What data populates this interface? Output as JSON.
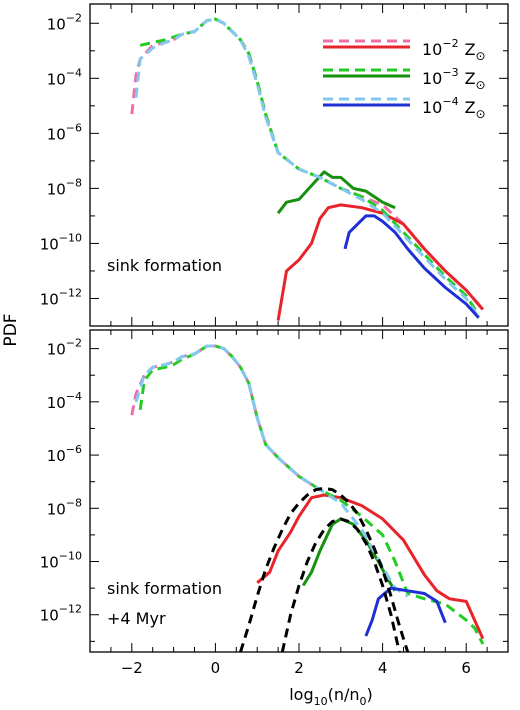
{
  "figure": {
    "ylabel": "PDF",
    "xlabel_base": "log",
    "xlabel_sub": "10",
    "xlabel_rest": "(n/n",
    "xlabel_sub2": "0",
    "xlabel_close": ")"
  },
  "legend": {
    "entries": [
      {
        "base": "10",
        "exp": "−2",
        "unit": "Z",
        "sun": "⊙",
        "dash_color": "#ee6fa8",
        "solid_color": "#e8232a"
      },
      {
        "base": "10",
        "exp": "−3",
        "unit": "Z",
        "sun": "⊙",
        "dash_color": "#22cc22",
        "solid_color": "#17900f"
      },
      {
        "base": "10",
        "exp": "−4",
        "unit": "Z",
        "sun": "⊙",
        "dash_color": "#82c8f0",
        "solid_color": "#1e2fd6"
      }
    ]
  },
  "chart_data": [
    {
      "type": "line",
      "panel": "top",
      "annotation": [
        "sink formation"
      ],
      "xlim": [
        -3,
        7
      ],
      "ylim_log10": [
        -13,
        -1.3
      ],
      "y_scale": "log",
      "x_ticks": [
        -2,
        0,
        2,
        4,
        6
      ],
      "x_tick_labels": [
        "",
        "",
        "",
        "",
        ""
      ],
      "y_ticks_log10": [
        -12,
        -10,
        -8,
        -6,
        -4,
        -2
      ],
      "y_tick_labels": [
        [
          "10",
          "−12"
        ],
        [
          "10",
          "−10"
        ],
        [
          "10",
          "−8"
        ],
        [
          "10",
          "−6"
        ],
        [
          "10",
          "−4"
        ],
        [
          "10",
          "−2"
        ]
      ],
      "series": [
        {
          "color": "#ee6fa8",
          "style": "dashed",
          "x": [
            -2.0,
            -1.9,
            -1.8,
            -1.5,
            -1.2,
            -1.0,
            -0.8,
            -0.5,
            -0.2,
            0.0,
            0.2,
            0.4,
            0.6,
            0.8,
            1.0,
            1.2,
            1.5,
            2.0,
            2.5,
            3.0,
            3.5,
            4.0,
            4.5,
            5.0,
            5.5,
            6.0,
            6.4
          ],
          "y": [
            -5.3,
            -3.9,
            -3.3,
            -2.8,
            -2.7,
            -2.6,
            -2.4,
            -2.3,
            -1.9,
            -1.85,
            -2.0,
            -2.3,
            -2.6,
            -3.1,
            -4.1,
            -5.3,
            -6.7,
            -7.3,
            -7.6,
            -8.0,
            -8.3,
            -8.6,
            -9.3,
            -10.2,
            -11.0,
            -11.7,
            -12.4
          ]
        },
        {
          "color": "#e8232a",
          "style": "solid",
          "x": [
            1.5,
            1.7,
            2.0,
            2.3,
            2.5,
            2.7,
            3.0,
            3.5,
            4.0,
            4.5,
            5.0,
            5.5,
            6.0,
            6.4
          ],
          "y": [
            -12.8,
            -11.0,
            -10.6,
            -10.0,
            -9.1,
            -8.7,
            -8.6,
            -8.7,
            -8.9,
            -9.3,
            -10.2,
            -11.0,
            -11.7,
            -12.4
          ]
        },
        {
          "color": "#22cc22",
          "style": "dashed",
          "x": [
            -1.8,
            -1.5,
            -1.2,
            -1.0,
            -0.8,
            -0.5,
            -0.2,
            0.0,
            0.2,
            0.4,
            0.6,
            0.8,
            1.0,
            1.2,
            1.5,
            2.0,
            2.5,
            3.0,
            3.5,
            4.0,
            4.5,
            5.0,
            5.5,
            6.0,
            6.3
          ],
          "y": [
            -2.8,
            -2.7,
            -2.6,
            -2.5,
            -2.4,
            -2.3,
            -1.9,
            -1.85,
            -2.0,
            -2.3,
            -2.6,
            -3.1,
            -4.1,
            -5.3,
            -6.7,
            -7.3,
            -7.6,
            -8.0,
            -8.3,
            -8.8,
            -9.6,
            -10.4,
            -11.2,
            -11.9,
            -12.6
          ]
        },
        {
          "color": "#17900f",
          "style": "solid",
          "x": [
            1.5,
            1.7,
            2.0,
            2.3,
            2.6,
            2.8,
            3.0,
            3.3,
            3.6,
            4.0,
            4.3
          ],
          "y": [
            -8.9,
            -8.5,
            -8.4,
            -7.9,
            -7.4,
            -7.6,
            -7.6,
            -8.0,
            -8.1,
            -8.5,
            -8.7
          ]
        },
        {
          "color": "#82c8f0",
          "style": "dashed",
          "x": [
            -1.9,
            -1.8,
            -1.5,
            -1.2,
            -1.0,
            -0.8,
            -0.5,
            -0.2,
            0.0,
            0.2,
            0.4,
            0.6,
            0.8,
            1.0,
            1.2,
            1.5,
            2.0,
            2.5,
            3.0,
            3.5,
            4.0,
            4.5,
            5.0,
            5.5,
            6.0,
            6.3
          ],
          "y": [
            -4.7,
            -3.3,
            -2.9,
            -2.7,
            -2.6,
            -2.4,
            -2.3,
            -1.9,
            -1.85,
            -2.0,
            -2.3,
            -2.6,
            -3.2,
            -4.2,
            -5.4,
            -6.7,
            -7.3,
            -7.6,
            -8.0,
            -8.4,
            -8.9,
            -9.7,
            -10.5,
            -11.3,
            -12.0,
            -12.7
          ]
        },
        {
          "color": "#1e2fd6",
          "style": "solid",
          "x": [
            3.1,
            3.2,
            3.4,
            3.6,
            3.8,
            4.0,
            4.3,
            4.6,
            5.0,
            5.5,
            6.0,
            6.3
          ],
          "y": [
            -10.2,
            -9.6,
            -9.3,
            -9.0,
            -9.0,
            -9.2,
            -9.6,
            -10.2,
            -10.9,
            -11.6,
            -12.2,
            -12.7
          ]
        }
      ]
    },
    {
      "type": "line",
      "panel": "bottom",
      "annotation": [
        "sink formation",
        "+4 Myr"
      ],
      "xlim": [
        -3,
        7
      ],
      "ylim_log10": [
        -13.4,
        -1.3
      ],
      "y_scale": "log",
      "x_ticks": [
        -2,
        0,
        2,
        4,
        6
      ],
      "x_tick_labels": [
        "−2",
        "0",
        "2",
        "4",
        "6"
      ],
      "y_ticks_log10": [
        -12,
        -10,
        -8,
        -6,
        -4,
        -2
      ],
      "y_tick_labels": [
        [
          "10",
          "−12"
        ],
        [
          "10",
          "−10"
        ],
        [
          "10",
          "−8"
        ],
        [
          "10",
          "−6"
        ],
        [
          "10",
          "−4"
        ],
        [
          "10",
          "−2"
        ]
      ],
      "series": [
        {
          "color": "#ee6fa8",
          "style": "dashed",
          "x": [
            -2.0,
            -1.9,
            -1.7,
            -1.5,
            -1.2,
            -1.0,
            -0.8,
            -0.5,
            -0.2,
            0.0,
            0.2,
            0.4,
            0.6,
            0.8,
            1.0,
            1.2,
            1.5,
            2.0,
            2.5
          ],
          "y": [
            -4.5,
            -3.7,
            -3.0,
            -2.7,
            -2.6,
            -2.5,
            -2.3,
            -2.2,
            -1.9,
            -1.9,
            -2.0,
            -2.3,
            -2.7,
            -3.3,
            -4.6,
            -5.6,
            -6.1,
            -6.8,
            -7.3
          ]
        },
        {
          "color": "#e8232a",
          "style": "solid",
          "x": [
            1.0,
            1.3,
            1.5,
            1.8,
            2.0,
            2.3,
            2.6,
            3.0,
            3.5,
            4.0,
            4.5,
            5.0,
            5.3,
            5.6,
            6.0,
            6.2,
            6.4
          ],
          "y": [
            -10.8,
            -10.4,
            -9.6,
            -8.9,
            -8.3,
            -7.6,
            -7.5,
            -7.6,
            -7.9,
            -8.4,
            -9.2,
            -10.5,
            -11.1,
            -11.4,
            -11.5,
            -12.2,
            -12.9
          ]
        },
        {
          "color": "#22cc22",
          "style": "dashed",
          "x": [
            -1.8,
            -1.7,
            -1.5,
            -1.2,
            -1.0,
            -0.8,
            -0.5,
            -0.2,
            0.0,
            0.2,
            0.4,
            0.6,
            0.8,
            1.0,
            1.2,
            1.5,
            2.0,
            2.5,
            3.0,
            3.5,
            4.0,
            4.3,
            4.6,
            5.0,
            5.5,
            6.0,
            6.2,
            6.4
          ],
          "y": [
            -4.3,
            -3.2,
            -2.8,
            -2.7,
            -2.6,
            -2.4,
            -2.2,
            -1.9,
            -1.9,
            -2.0,
            -2.3,
            -2.7,
            -3.3,
            -4.6,
            -5.6,
            -6.1,
            -6.8,
            -7.3,
            -7.7,
            -8.3,
            -9.0,
            -10.0,
            -11.2,
            -11.4,
            -11.6,
            -12.2,
            -12.5,
            -13.1
          ]
        },
        {
          "color": "#17900f",
          "style": "solid",
          "x": [
            2.1,
            2.3,
            2.5,
            2.8,
            3.0,
            3.3,
            3.6,
            3.9,
            4.1,
            4.3
          ],
          "y": [
            -10.9,
            -10.4,
            -9.6,
            -8.6,
            -8.4,
            -8.6,
            -9.2,
            -10.0,
            -10.6,
            -11.1
          ]
        },
        {
          "color": "#82c8f0",
          "style": "dashed",
          "x": [
            -1.9,
            -1.7,
            -1.5,
            -1.2,
            -1.0,
            -0.8,
            -0.5,
            -0.2,
            0.0,
            0.2,
            0.4,
            0.6,
            0.8,
            1.0,
            1.2,
            1.5,
            2.0,
            2.5,
            3.0,
            3.5,
            4.0,
            4.3,
            4.6
          ],
          "y": [
            -4.0,
            -3.0,
            -2.7,
            -2.6,
            -2.5,
            -2.3,
            -2.2,
            -1.9,
            -1.9,
            -2.0,
            -2.3,
            -2.7,
            -3.3,
            -4.6,
            -5.6,
            -6.1,
            -6.8,
            -7.3,
            -7.8,
            -8.8,
            -10.2,
            -11.0,
            -11.3
          ]
        },
        {
          "color": "#1e2fd6",
          "style": "solid",
          "x": [
            3.6,
            3.75,
            3.9,
            4.2,
            4.6,
            5.0,
            5.3,
            5.5
          ],
          "y": [
            -12.8,
            -12.2,
            -11.4,
            -11.0,
            -11.1,
            -11.2,
            -11.5,
            -12.3
          ]
        },
        {
          "color": "#000000",
          "style": "dashed",
          "fit": "lognormal",
          "x": [
            0.6,
            0.8,
            1.0,
            1.2,
            1.4,
            1.6,
            1.8,
            2.0,
            2.2,
            2.4,
            2.6,
            2.8,
            3.0,
            3.2,
            3.4,
            3.6,
            3.8,
            4.0,
            4.2,
            4.4,
            4.6
          ],
          "y": [
            -13.4,
            -12.4,
            -11.3,
            -10.3,
            -9.5,
            -8.8,
            -8.2,
            -7.8,
            -7.5,
            -7.3,
            -7.25,
            -7.3,
            -7.5,
            -7.8,
            -8.2,
            -8.8,
            -9.5,
            -10.3,
            -11.3,
            -12.4,
            -13.4
          ]
        },
        {
          "color": "#000000",
          "style": "dashed",
          "fit": "lognormal",
          "x": [
            1.6,
            1.8,
            2.0,
            2.2,
            2.4,
            2.6,
            2.8,
            3.0,
            3.2,
            3.4,
            3.6,
            3.8,
            4.0,
            4.2,
            4.4
          ],
          "y": [
            -13.4,
            -12.0,
            -10.9,
            -10.0,
            -9.3,
            -8.8,
            -8.5,
            -8.4,
            -8.5,
            -8.8,
            -9.3,
            -10.0,
            -10.9,
            -12.0,
            -13.4
          ]
        }
      ]
    }
  ]
}
